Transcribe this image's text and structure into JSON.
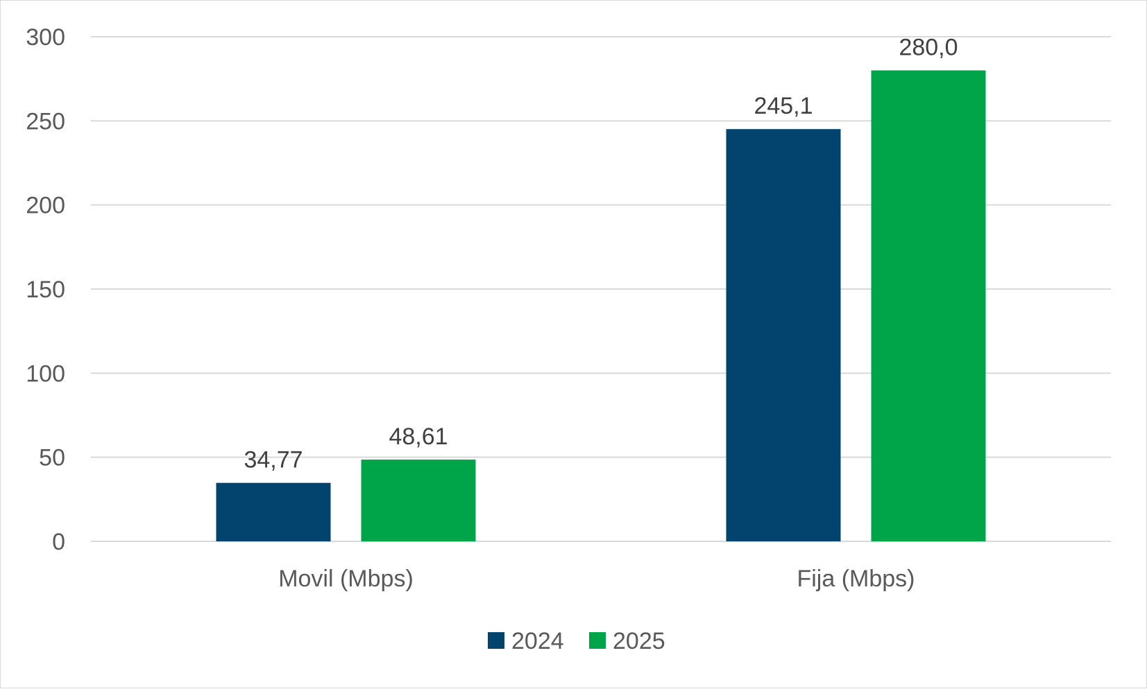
{
  "chart_data": {
    "type": "bar",
    "title": "",
    "xlabel": "",
    "ylabel": "",
    "categories": [
      "Movil (Mbps)",
      "Fija (Mbps)"
    ],
    "series": [
      {
        "name": "2024",
        "color": "#03446f",
        "values": [
          34.77,
          245.1
        ],
        "labels": [
          "34,77",
          "245,1"
        ]
      },
      {
        "name": "2025",
        "color": "#00a549",
        "values": [
          48.61,
          280.0
        ],
        "labels": [
          "48,61",
          "280,0"
        ]
      }
    ],
    "ylim": [
      0,
      300
    ],
    "yticks": [
      0,
      50,
      100,
      150,
      200,
      250,
      300
    ],
    "grid": true,
    "legend_position": "bottom"
  }
}
